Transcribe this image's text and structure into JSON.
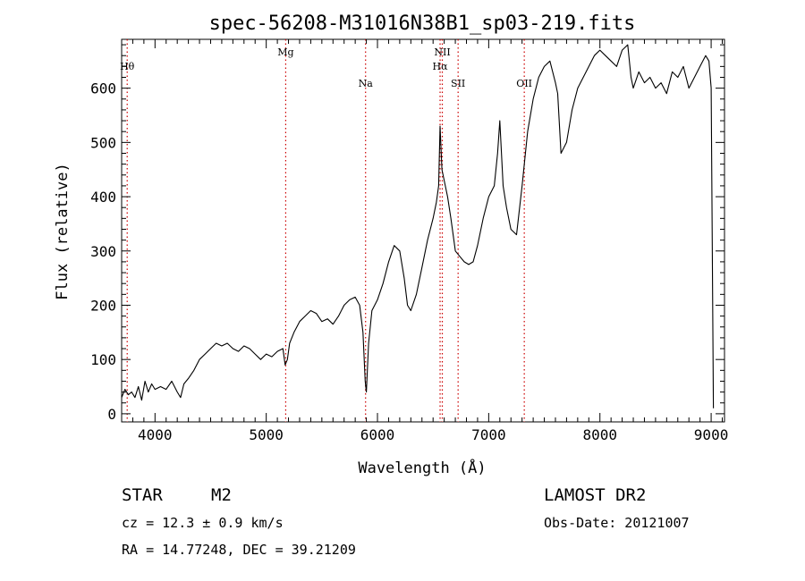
{
  "chart_data": {
    "type": "line",
    "title": "spec-56208-M31016N38B1_sp03-219.fits",
    "xlabel": "Wavelength (Å)",
    "ylabel": "Flux (relative)",
    "xlim": [
      3700,
      9120
    ],
    "ylim": [
      -15,
      690
    ],
    "x_ticks": [
      4000,
      5000,
      6000,
      7000,
      8000,
      9000
    ],
    "y_ticks": [
      0,
      100,
      200,
      300,
      400,
      500,
      600
    ],
    "grid": false,
    "line_color": "#000000",
    "marker_color": "#cc0000",
    "lines": [
      {
        "label": "Hθ",
        "wavelength": 3750,
        "label_row": 2
      },
      {
        "label": "Mg",
        "wavelength": 5175,
        "label_row": 1
      },
      {
        "label": "Na",
        "wavelength": 5893,
        "label_row": 3
      },
      {
        "label": "NII",
        "wavelength": 6583,
        "label_row": 1
      },
      {
        "label": "Hα",
        "wavelength": 6563,
        "label_row": 2
      },
      {
        "label": "SII",
        "wavelength": 6725,
        "label_row": 3
      },
      {
        "label": "OII",
        "wavelength": 7320,
        "label_row": 3
      }
    ],
    "series": [
      {
        "x": [
          3700,
          3730,
          3760,
          3790,
          3820,
          3850,
          3880,
          3910,
          3940,
          3970,
          4000,
          4050,
          4100,
          4150,
          4200,
          4230,
          4260,
          4300,
          4350,
          4400,
          4450,
          4500,
          4550,
          4600,
          4650,
          4700,
          4750,
          4800,
          4850,
          4900,
          4950,
          5000,
          5050,
          5100,
          5150,
          5170,
          5190,
          5210,
          5250,
          5300,
          5350,
          5400,
          5450,
          5500,
          5550,
          5600,
          5650,
          5700,
          5750,
          5800,
          5840,
          5870,
          5890,
          5900,
          5920,
          5950,
          6000,
          6050,
          6100,
          6150,
          6200,
          6240,
          6270,
          6300,
          6350,
          6400,
          6450,
          6500,
          6530,
          6550,
          6563,
          6580,
          6600,
          6630,
          6660,
          6700,
          6740,
          6780,
          6820,
          6860,
          6900,
          6950,
          7000,
          7050,
          7080,
          7100,
          7130,
          7160,
          7200,
          7250,
          7300,
          7350,
          7400,
          7450,
          7500,
          7550,
          7600,
          7620,
          7650,
          7700,
          7750,
          7800,
          7850,
          7900,
          7950,
          8000,
          8050,
          8100,
          8150,
          8200,
          8250,
          8280,
          8300,
          8350,
          8400,
          8450,
          8500,
          8550,
          8600,
          8650,
          8700,
          8750,
          8800,
          8850,
          8900,
          8950,
          8980,
          9000,
          9020
        ],
        "y": [
          30,
          45,
          35,
          40,
          30,
          50,
          25,
          60,
          40,
          55,
          45,
          50,
          45,
          60,
          40,
          30,
          55,
          65,
          80,
          100,
          110,
          120,
          130,
          125,
          130,
          120,
          115,
          125,
          120,
          110,
          100,
          110,
          105,
          115,
          120,
          90,
          100,
          130,
          150,
          170,
          180,
          190,
          185,
          170,
          175,
          165,
          180,
          200,
          210,
          215,
          200,
          150,
          60,
          40,
          130,
          190,
          210,
          240,
          280,
          310,
          300,
          250,
          200,
          190,
          220,
          270,
          320,
          360,
          390,
          420,
          530,
          450,
          430,
          400,
          360,
          300,
          290,
          280,
          275,
          280,
          310,
          360,
          400,
          420,
          480,
          540,
          420,
          380,
          340,
          330,
          420,
          520,
          580,
          620,
          640,
          650,
          610,
          590,
          480,
          500,
          560,
          600,
          620,
          640,
          660,
          670,
          660,
          650,
          640,
          670,
          680,
          620,
          600,
          630,
          610,
          620,
          600,
          610,
          590,
          630,
          620,
          640,
          600,
          620,
          640,
          660,
          650,
          600,
          10
        ]
      }
    ],
    "footer": {
      "object_type": "STAR",
      "subclass": "M2",
      "redshift_line": "cz =  12.3 ± 0.9 km/s",
      "coords_line": "RA =   14.77248, DEC =   39.21209",
      "survey": "LAMOST DR2",
      "obs_date": "Obs-Date: 20121007"
    }
  }
}
